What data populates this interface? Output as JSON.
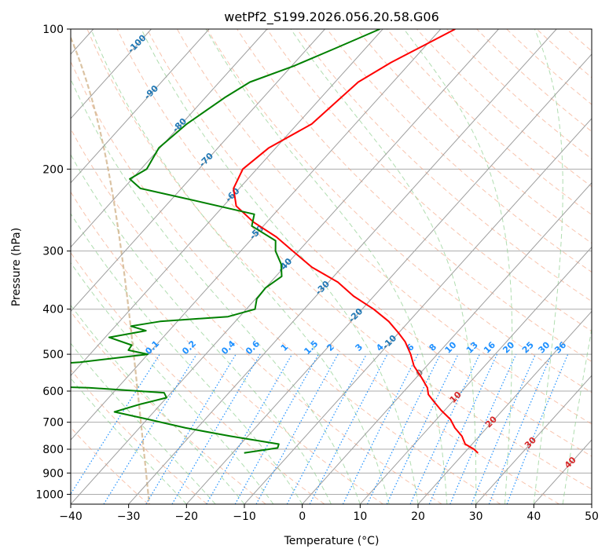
{
  "chart_data": {
    "type": "line",
    "subtype": "skew-t log-p",
    "title": "wetPf2_S199.2026.056.20.58.G06",
    "xlabel": "Temperature (°C)",
    "ylabel": "Pressure (hPa)",
    "xlim": [
      -40,
      50
    ],
    "ylim": [
      1050,
      100
    ],
    "x_ticks": [
      -40,
      -30,
      -20,
      -10,
      0,
      10,
      20,
      30,
      40,
      50
    ],
    "x_tick_labels": [
      "−40",
      "−30",
      "−20",
      "−10",
      "0",
      "10",
      "20",
      "30",
      "40",
      "50"
    ],
    "y_ticks": [
      100,
      200,
      300,
      400,
      500,
      600,
      700,
      800,
      900,
      1000
    ],
    "y_tick_labels": [
      "100",
      "200",
      "300",
      "400",
      "500",
      "600",
      "700",
      "800",
      "900",
      "1000"
    ],
    "grid": true,
    "series": [
      {
        "name": "temperature",
        "color": "#ff0000",
        "points": [
          [
            100,
            -47.5
          ],
          [
            108,
            -50.2
          ],
          [
            118,
            -53.4
          ],
          [
            130,
            -56.0
          ],
          [
            145,
            -56.8
          ],
          [
            160,
            -57.5
          ],
          [
            180,
            -61.2
          ],
          [
            200,
            -62.4
          ],
          [
            220,
            -61.0
          ],
          [
            240,
            -57.8
          ],
          [
            260,
            -52.3
          ],
          [
            280,
            -46.0
          ],
          [
            300,
            -41.0
          ],
          [
            325,
            -35.2
          ],
          [
            350,
            -28.4
          ],
          [
            375,
            -23.5
          ],
          [
            400,
            -18.0
          ],
          [
            425,
            -13.5
          ],
          [
            450,
            -10.0
          ],
          [
            470,
            -7.5
          ],
          [
            500,
            -4.6
          ],
          [
            530,
            -2.2
          ],
          [
            560,
            0.8
          ],
          [
            590,
            3.5
          ],
          [
            610,
            4.7
          ],
          [
            630,
            6.6
          ],
          [
            660,
            9.4
          ],
          [
            690,
            12.4
          ],
          [
            720,
            14.5
          ],
          [
            750,
            17.0
          ],
          [
            780,
            18.8
          ],
          [
            800,
            21.1
          ],
          [
            815,
            22.4
          ]
        ]
      },
      {
        "name": "dewpoint",
        "color": "#008000",
        "points": [
          [
            100,
            -60.5
          ],
          [
            110,
            -65.2
          ],
          [
            120,
            -69.6
          ],
          [
            130,
            -74.7
          ],
          [
            140,
            -76.6
          ],
          [
            160,
            -79.1
          ],
          [
            180,
            -80.2
          ],
          [
            200,
            -79.0
          ],
          [
            210,
            -80.4
          ],
          [
            220,
            -77.1
          ],
          [
            235,
            -64.8
          ],
          [
            250,
            -53.4
          ],
          [
            265,
            -52.0
          ],
          [
            285,
            -45.6
          ],
          [
            300,
            -44.0
          ],
          [
            320,
            -41.0
          ],
          [
            340,
            -39.0
          ],
          [
            360,
            -40.0
          ],
          [
            380,
            -39.8
          ],
          [
            400,
            -38.5
          ],
          [
            415,
            -42.0
          ],
          [
            425,
            -53.0
          ],
          [
            435,
            -57.3
          ],
          [
            445,
            -54.0
          ],
          [
            460,
            -59.3
          ],
          [
            478,
            -54.2
          ],
          [
            490,
            -54.0
          ],
          [
            500,
            -50.0
          ],
          [
            520,
            -60.5
          ],
          [
            540,
            -78.0
          ],
          [
            550,
            -100.0
          ],
          [
            570,
            -100.0
          ],
          [
            590,
            -55.0
          ],
          [
            605,
            -41.2
          ],
          [
            620,
            -40.0
          ],
          [
            640,
            -43.5
          ],
          [
            665,
            -46.8
          ],
          [
            690,
            -39.8
          ],
          [
            720,
            -32.0
          ],
          [
            750,
            -23.0
          ],
          [
            780,
            -13.4
          ],
          [
            795,
            -13.0
          ],
          [
            815,
            -18.0
          ]
        ]
      }
    ],
    "isotherm_labels": [
      "-100",
      "-90",
      "-80",
      "-70",
      "-60",
      "-50",
      "-40",
      "-30",
      "-20",
      "-10",
      "0",
      "10",
      "20",
      "30",
      "40"
    ],
    "mixing_ratio_labels": [
      "0.1",
      "0.2",
      "0.4",
      "0.6",
      "1",
      "1.5",
      "2",
      "3",
      "4",
      "6",
      "8",
      "10",
      "13",
      "16",
      "20",
      "25",
      "30",
      "36"
    ],
    "mixing_ratio_values": [
      0.1,
      0.2,
      0.4,
      0.6,
      1,
      1.5,
      2,
      3,
      4,
      6,
      8,
      10,
      13,
      16,
      20,
      25,
      30,
      36
    ],
    "colors": {
      "isotherm": "#9e9e9e",
      "isobar": "#ababab",
      "dry_adiabat": "#f4a582",
      "moist_adiabat": "#8fcf8f",
      "mixing_ratio": "#1e90ff",
      "isotherm_label_cold": "#1f77b4",
      "isotherm_label_zero": "#808080",
      "isotherm_label_warm": "#d62728",
      "thick_isotherm": "#d2b48c"
    }
  }
}
